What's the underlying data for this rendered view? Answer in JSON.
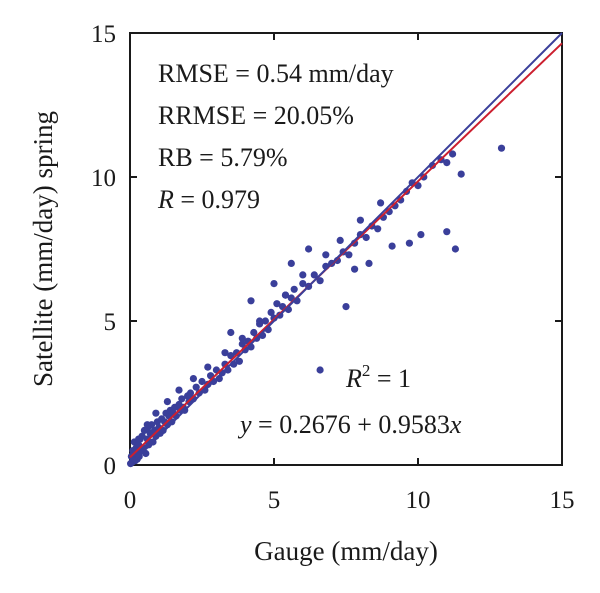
{
  "chart_data": {
    "type": "scatter",
    "xlabel": "Gauge (mm/day)",
    "ylabel": "Satellite (mm/day) spring",
    "xlim": [
      0,
      15
    ],
    "ylim": [
      0,
      15
    ],
    "xticks": [
      "0",
      "5",
      "10",
      "15"
    ],
    "yticks": [
      "0",
      "5",
      "10",
      "15"
    ],
    "grid": false,
    "stats": {
      "rmse": "RMSE = 0.54 mm/day",
      "rrmse": "RRMSE = 20.05%",
      "rb": "RB = 5.79%",
      "r_var": "R",
      "r_value": " = 0.979",
      "r2_var": "R",
      "r2_sup": "2",
      "r2_value": " = 1",
      "fit_var": "y",
      "fit_rest": " = 0.2676 + 0.9583",
      "fit_x": "x"
    },
    "series": [
      {
        "kind": "points",
        "color": "#3a3f9a",
        "x": [
          0.02,
          0.05,
          0.08,
          0.1,
          0.12,
          0.15,
          0.18,
          0.2,
          0.22,
          0.25,
          0.3,
          0.32,
          0.35,
          0.4,
          0.42,
          0.45,
          0.5,
          0.55,
          0.6,
          0.62,
          0.65,
          0.7,
          0.75,
          0.8,
          0.85,
          0.9,
          0.95,
          1.0,
          1.05,
          1.1,
          1.15,
          1.2,
          1.25,
          1.3,
          1.35,
          1.4,
          1.45,
          1.5,
          1.55,
          1.6,
          1.7,
          1.75,
          1.8,
          1.85,
          1.9,
          2.0,
          2.05,
          2.1,
          2.2,
          2.3,
          2.4,
          2.5,
          2.6,
          2.7,
          2.8,
          2.9,
          3.0,
          3.1,
          3.2,
          3.3,
          3.4,
          3.5,
          3.6,
          3.7,
          3.8,
          3.9,
          4.0,
          4.1,
          4.2,
          4.3,
          4.4,
          4.5,
          4.6,
          4.7,
          4.8,
          4.9,
          5.0,
          5.1,
          5.2,
          5.3,
          5.4,
          5.5,
          5.6,
          5.7,
          5.8,
          6.0,
          6.2,
          6.4,
          6.6,
          6.8,
          7.0,
          7.2,
          7.4,
          7.6,
          7.8,
          8.0,
          8.2,
          8.4,
          8.6,
          8.8,
          9.0,
          9.2,
          9.4,
          9.6,
          9.8,
          10.0,
          10.2,
          10.5,
          10.8,
          11.0,
          11.2,
          11.5,
          12.9,
          6.6,
          7.5,
          7.8,
          8.3,
          9.1,
          9.7,
          10.1,
          11.0,
          11.3,
          3.5,
          4.2,
          5.0,
          5.6,
          6.2,
          0.3,
          0.6,
          0.9,
          1.3,
          1.7,
          2.2,
          2.7,
          3.3,
          3.9,
          4.5,
          5.4,
          6.0,
          6.8,
          7.3,
          8.0,
          8.7
        ],
        "y": [
          0.05,
          0.3,
          0.1,
          0.5,
          0.2,
          0.8,
          0.15,
          0.4,
          0.6,
          0.2,
          0.7,
          0.3,
          0.9,
          0.5,
          1.0,
          0.6,
          1.2,
          0.4,
          0.9,
          1.3,
          0.7,
          1.1,
          1.4,
          0.8,
          1.2,
          1.0,
          1.5,
          1.3,
          1.1,
          1.6,
          1.2,
          1.5,
          1.8,
          1.4,
          1.7,
          1.9,
          1.5,
          1.8,
          2.0,
          1.7,
          2.1,
          1.9,
          2.3,
          2.0,
          1.9,
          2.4,
          2.2,
          2.5,
          2.3,
          2.7,
          2.5,
          2.9,
          2.6,
          2.8,
          3.1,
          2.9,
          3.3,
          3.0,
          3.2,
          3.5,
          3.3,
          3.8,
          3.5,
          3.9,
          3.6,
          4.2,
          4.0,
          4.3,
          4.1,
          4.6,
          4.4,
          4.9,
          4.5,
          5.0,
          4.7,
          5.3,
          5.1,
          5.6,
          5.2,
          5.5,
          5.9,
          5.4,
          5.8,
          6.1,
          5.7,
          6.3,
          6.2,
          6.6,
          6.4,
          6.9,
          7.0,
          7.1,
          7.4,
          7.3,
          7.7,
          8.0,
          7.9,
          8.3,
          8.2,
          8.6,
          8.8,
          9.0,
          9.2,
          9.5,
          9.8,
          9.7,
          10.0,
          10.4,
          10.6,
          10.5,
          10.8,
          10.1,
          11.0,
          3.3,
          5.5,
          6.8,
          7.0,
          7.6,
          7.7,
          8.0,
          8.1,
          7.5,
          4.6,
          5.7,
          6.3,
          7.0,
          7.5,
          0.9,
          1.4,
          1.8,
          2.2,
          2.6,
          3.0,
          3.4,
          3.9,
          4.4,
          5.0,
          5.9,
          6.6,
          7.3,
          7.8,
          8.5,
          9.1
        ]
      },
      {
        "kind": "line",
        "name": "fit",
        "color": "#cc1f2f",
        "intercept": 0.2676,
        "slope": 0.9583
      },
      {
        "kind": "line",
        "name": "one-to-one",
        "color": "#3a3f9a",
        "intercept": 0,
        "slope": 1
      }
    ]
  }
}
